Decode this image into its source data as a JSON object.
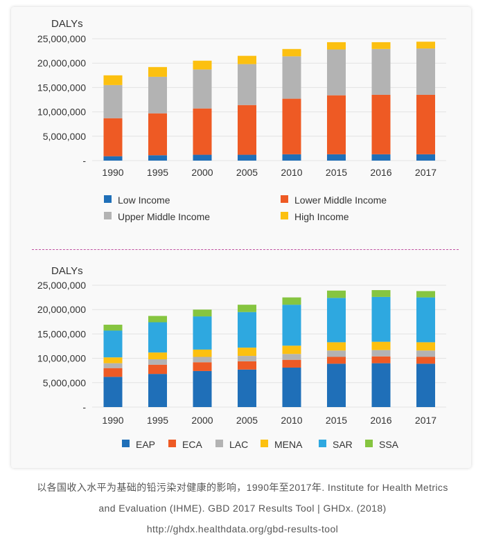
{
  "chart_data": [
    {
      "type": "bar",
      "stacked": true,
      "ylabel": "DALYs",
      "ylim": [
        0,
        25000000
      ],
      "yticks": [
        "-",
        "5,000,000",
        "10,000,000",
        "15,000,000",
        "20,000,000",
        "25,000,000"
      ],
      "categories": [
        "1990",
        "1995",
        "2000",
        "2005",
        "2010",
        "2015",
        "2016",
        "2017"
      ],
      "legend_position": "bottom",
      "series": [
        {
          "name": "Low Income",
          "color": "#1f6fb8",
          "values": [
            900000,
            1100000,
            1200000,
            1200000,
            1300000,
            1300000,
            1300000,
            1300000
          ]
        },
        {
          "name": "Lower Middle Income",
          "color": "#ee5a24",
          "values": [
            7800000,
            8600000,
            9500000,
            10200000,
            11400000,
            12100000,
            12200000,
            12200000
          ]
        },
        {
          "name": "Upper Middle Income",
          "color": "#b3b3b3",
          "values": [
            6800000,
            7500000,
            8000000,
            8400000,
            8700000,
            9400000,
            9400000,
            9500000
          ]
        },
        {
          "name": "High Income",
          "color": "#fcc010",
          "values": [
            2000000,
            2000000,
            1800000,
            1700000,
            1500000,
            1500000,
            1400000,
            1400000
          ]
        }
      ]
    },
    {
      "type": "bar",
      "stacked": true,
      "ylabel": "DALYs",
      "ylim": [
        0,
        25000000
      ],
      "yticks": [
        "-",
        "5,000,000",
        "10,000,000",
        "15,000,000",
        "20,000,000",
        "25,000,000"
      ],
      "categories": [
        "1990",
        "1995",
        "2000",
        "2005",
        "2010",
        "2015",
        "2016",
        "2017"
      ],
      "legend_position": "bottom",
      "series": [
        {
          "name": "EAP",
          "color": "#1f6fb8",
          "values": [
            6200000,
            6800000,
            7400000,
            7700000,
            8100000,
            8900000,
            9000000,
            8900000
          ]
        },
        {
          "name": "ECA",
          "color": "#ee5a24",
          "values": [
            1800000,
            1900000,
            1800000,
            1700000,
            1600000,
            1400000,
            1400000,
            1400000
          ]
        },
        {
          "name": "LAC",
          "color": "#b3b3b3",
          "values": [
            1000000,
            1100000,
            1100000,
            1100000,
            1200000,
            1300000,
            1300000,
            1300000
          ]
        },
        {
          "name": "MENA",
          "color": "#fcc010",
          "values": [
            1200000,
            1400000,
            1500000,
            1700000,
            1700000,
            1700000,
            1700000,
            1700000
          ]
        },
        {
          "name": "SAR",
          "color": "#2ea8e0",
          "values": [
            5500000,
            6200000,
            6800000,
            7300000,
            8400000,
            9100000,
            9200000,
            9200000
          ]
        },
        {
          "name": "SSA",
          "color": "#86c540",
          "values": [
            1200000,
            1300000,
            1400000,
            1500000,
            1500000,
            1500000,
            1400000,
            1300000
          ]
        }
      ]
    }
  ],
  "caption": {
    "line1": "以各国收入水平为基础的铅污染对健康的影响，1990年至2017年. Institute for Health Metrics",
    "line2": "and Evaluation (IHME). GBD 2017 Results Tool | GHDx. (2018)",
    "line3": "http://ghdx.healthdata.org/gbd-results-tool"
  }
}
